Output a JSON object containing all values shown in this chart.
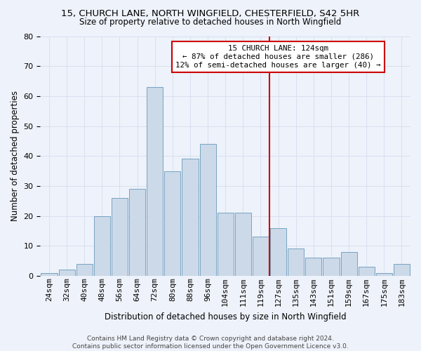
{
  "title_line1": "15, CHURCH LANE, NORTH WINGFIELD, CHESTERFIELD, S42 5HR",
  "title_line2": "Size of property relative to detached houses in North Wingfield",
  "xlabel": "Distribution of detached houses by size in North Wingfield",
  "ylabel": "Number of detached properties",
  "footer_line1": "Contains HM Land Registry data © Crown copyright and database right 2024.",
  "footer_line2": "Contains public sector information licensed under the Open Government Licence v3.0.",
  "annotation_line1": "15 CHURCH LANE: 124sqm",
  "annotation_line2": "← 87% of detached houses are smaller (286)",
  "annotation_line3": "12% of semi-detached houses are larger (40) →",
  "categories": [
    "24sqm",
    "32sqm",
    "40sqm",
    "48sqm",
    "56sqm",
    "64sqm",
    "72sqm",
    "80sqm",
    "88sqm",
    "96sqm",
    "104sqm",
    "111sqm",
    "119sqm",
    "127sqm",
    "135sqm",
    "143sqm",
    "151sqm",
    "159sqm",
    "167sqm",
    "175sqm",
    "183sqm"
  ],
  "values": [
    1,
    2,
    4,
    20,
    26,
    29,
    63,
    35,
    39,
    44,
    21,
    21,
    13,
    16,
    9,
    6,
    6,
    8,
    3,
    1,
    4
  ],
  "n_bins": 21,
  "vline_bin": 13,
  "bar_color": "#ccd9e8",
  "bar_edge_color": "#6699bb",
  "vline_color": "#cc0000",
  "annotation_box_edgecolor": "#cc0000",
  "annotation_box_facecolor": "#ffffff",
  "grid_color": "#d8dff0",
  "background_color": "#eef2fa",
  "ylim_max": 80,
  "yticks": [
    0,
    10,
    20,
    30,
    40,
    50,
    60,
    70,
    80
  ],
  "title1_fontsize": 9.5,
  "title2_fontsize": 8.5,
  "ylabel_fontsize": 8.5,
  "xlabel_fontsize": 8.5,
  "tick_fontsize": 8,
  "annotation_fontsize": 7.8,
  "footer_fontsize": 6.5
}
